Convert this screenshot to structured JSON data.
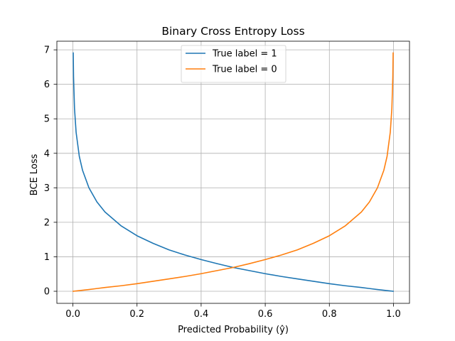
{
  "chart_data": {
    "type": "line",
    "title": "Binary Cross Entropy Loss",
    "xlabel": "Predicted Probability (ŷ)",
    "ylabel": "BCE Loss",
    "xlim": [
      -0.05,
      1.05
    ],
    "ylim": [
      -0.35,
      7.25
    ],
    "x_ticks": [
      0.0,
      0.2,
      0.4,
      0.6,
      0.8,
      1.0
    ],
    "x_tick_labels": [
      "0.0",
      "0.2",
      "0.4",
      "0.6",
      "0.8",
      "1.0"
    ],
    "y_ticks": [
      0,
      1,
      2,
      3,
      4,
      5,
      6,
      7
    ],
    "y_tick_labels": [
      "0",
      "1",
      "2",
      "3",
      "4",
      "5",
      "6",
      "7"
    ],
    "grid": true,
    "legend_position": "top-center",
    "x": [
      0.001,
      0.002,
      0.005,
      0.01,
      0.02,
      0.03,
      0.05,
      0.075,
      0.1,
      0.15,
      0.2,
      0.25,
      0.3,
      0.35,
      0.4,
      0.45,
      0.5,
      0.55,
      0.6,
      0.65,
      0.7,
      0.75,
      0.8,
      0.85,
      0.9,
      0.925,
      0.95,
      0.97,
      0.98,
      0.99,
      0.995,
      0.998,
      0.999
    ],
    "series": [
      {
        "name": "True label = 1",
        "color": "#1f77b4",
        "values": [
          6.91,
          6.21,
          5.3,
          4.61,
          3.91,
          3.51,
          3.0,
          2.59,
          2.3,
          1.9,
          1.61,
          1.39,
          1.2,
          1.05,
          0.92,
          0.8,
          0.69,
          0.6,
          0.51,
          0.43,
          0.36,
          0.29,
          0.22,
          0.16,
          0.11,
          0.08,
          0.05,
          0.03,
          0.02,
          0.01,
          0.005,
          0.002,
          0.001
        ]
      },
      {
        "name": "True label = 0",
        "color": "#ff7f0e",
        "values": [
          0.001,
          0.002,
          0.005,
          0.01,
          0.02,
          0.03,
          0.05,
          0.08,
          0.11,
          0.16,
          0.22,
          0.29,
          0.36,
          0.43,
          0.51,
          0.6,
          0.69,
          0.8,
          0.92,
          1.05,
          1.2,
          1.39,
          1.61,
          1.9,
          2.3,
          2.59,
          3.0,
          3.51,
          3.91,
          4.61,
          5.3,
          6.21,
          6.91
        ]
      }
    ]
  }
}
